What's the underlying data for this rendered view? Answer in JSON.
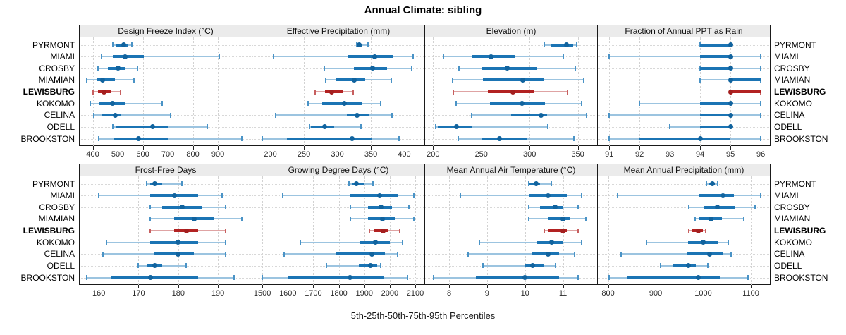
{
  "title": "Annual Climate: sibling",
  "caption": "5th-25th-50th-75th-95th Percentiles",
  "percentile_labels": [
    "5th",
    "25th",
    "50th",
    "75th",
    "95th"
  ],
  "stations": [
    "PYRMONT",
    "MIAMI",
    "CROSBY",
    "MIAMIAN",
    "LEWISBURG",
    "KOKOMO",
    "CELINA",
    "ODELL",
    "BROOKSTON"
  ],
  "highlight_station": "LEWISBURG",
  "colors": {
    "series": "#1b74b4",
    "series_light": "#9cc4e0",
    "series_cap": "#4a93c6",
    "series_dot": "#11639e",
    "highlight": "#b22222",
    "highlight_light": "#dfa3a3",
    "highlight_cap": "#c75f5f",
    "highlight_dot": "#a31f1f",
    "panel_header_bg": "#ebebeb",
    "panel_border": "#1a1a1a",
    "grid": "#d2d2d2",
    "tick_label": "#2b2b2b"
  },
  "chart_data": {
    "type": "scatter",
    "subtype": "percentile-interval-dotplot",
    "orientation": "horizontal",
    "grid": "dotted",
    "panels": [
      {
        "title": "Design Freeze Index (°C)",
        "row": 0,
        "col": 0,
        "xlim": [
          345,
          1035
        ],
        "ticks": [
          400,
          500,
          600,
          700,
          800,
          900
        ],
        "series": [
          {
            "station": "PYRMONT",
            "percentiles": [
              480,
              495,
              525,
              540,
              555
            ]
          },
          {
            "station": "MIAMI",
            "percentiles": [
              435,
              480,
              530,
              605,
              905
            ]
          },
          {
            "station": "CROSBY",
            "percentiles": [
              420,
              460,
              500,
              530,
              578
            ]
          },
          {
            "station": "MIAMIAN",
            "percentiles": [
              375,
              415,
              440,
              490,
              565
            ]
          },
          {
            "station": "LEWISBURG",
            "percentiles": [
              400,
              420,
              445,
              475,
              510
            ]
          },
          {
            "station": "KOKOMO",
            "percentiles": [
              390,
              425,
              480,
              527,
              678
            ]
          },
          {
            "station": "CELINA",
            "percentiles": [
              405,
              436,
              490,
              514,
              710
            ]
          },
          {
            "station": "ODELL",
            "percentiles": [
              480,
              492,
              638,
              702,
              857
            ]
          },
          {
            "station": "BROOKSTON",
            "percentiles": [
              424,
              486,
              584,
              702,
              995
            ]
          }
        ]
      },
      {
        "title": "Effective Precipitation (mm)",
        "row": 0,
        "col": 1,
        "xlim": [
          172,
          430
        ],
        "ticks": [
          200,
          250,
          300,
          350,
          400
        ],
        "series": [
          {
            "station": "PYRMONT",
            "percentiles": [
              329,
              330,
              333,
              337,
              346
            ]
          },
          {
            "station": "MIAMI",
            "percentiles": [
              205,
              316,
              356,
              383,
              413
            ]
          },
          {
            "station": "CROSBY",
            "percentiles": [
              280,
              325,
              353,
              374,
              411
            ]
          },
          {
            "station": "MIAMIAN",
            "percentiles": [
              283,
              297,
              325,
              342,
              381
            ]
          },
          {
            "station": "LEWISBURG",
            "percentiles": [
              267,
              281,
              291,
              309,
              324
            ]
          },
          {
            "station": "KOKOMO",
            "percentiles": [
              256,
              277,
              310,
              337,
              365
            ]
          },
          {
            "station": "CELINA",
            "percentiles": [
              208,
              314,
              329,
              348,
              382
            ]
          },
          {
            "station": "ODELL",
            "percentiles": [
              258,
              260,
              281,
              295,
              335
            ]
          },
          {
            "station": "BROOKSTON",
            "percentiles": [
              188,
              225,
              322,
              351,
              392
            ]
          }
        ]
      },
      {
        "title": "Elevation (m)",
        "row": 0,
        "col": 2,
        "xlim": [
          191,
          370
        ],
        "ticks": [
          200,
          250,
          300,
          350
        ],
        "series": [
          {
            "station": "PYRMONT",
            "percentiles": [
              315,
              322,
              338,
              345,
              349
            ]
          },
          {
            "station": "MIAMI",
            "percentiles": [
              211,
              241,
              260,
              285,
              335
            ]
          },
          {
            "station": "CROSBY",
            "percentiles": [
              227,
              251,
              277,
              308,
              347
            ]
          },
          {
            "station": "MIAMIAN",
            "percentiles": [
              220,
              252,
              293,
              315,
              356
            ]
          },
          {
            "station": "LEWISBURG",
            "percentiles": [
              221,
              257,
              283,
              305,
              339
            ]
          },
          {
            "station": "KOKOMO",
            "percentiles": [
              224,
              259,
              292,
              316,
              354
            ]
          },
          {
            "station": "CELINA",
            "percentiles": [
              240,
              281,
              312,
              318,
              359
            ]
          },
          {
            "station": "ODELL",
            "percentiles": [
              203,
              205,
              224,
              241,
              319
            ]
          },
          {
            "station": "BROOKSTON",
            "percentiles": [
              226,
              250,
              269,
              297,
              346
            ]
          }
        ]
      },
      {
        "title": "Fraction of Annual PPT as Rain",
        "row": 0,
        "col": 3,
        "xlim": [
          90.6,
          96.3
        ],
        "ticks": [
          91,
          92,
          93,
          94,
          95,
          96
        ],
        "series": [
          {
            "station": "PYRMONT",
            "percentiles": [
              94,
              94,
              95,
              95,
              95
            ]
          },
          {
            "station": "MIAMI",
            "percentiles": [
              91,
              94,
              95,
              95,
              96
            ]
          },
          {
            "station": "CROSBY",
            "percentiles": [
              94,
              94,
              95,
              95,
              96
            ]
          },
          {
            "station": "MIAMIAN",
            "percentiles": [
              94,
              95,
              95,
              96,
              96
            ]
          },
          {
            "station": "LEWISBURG",
            "percentiles": [
              95,
              95,
              95,
              96,
              96
            ]
          },
          {
            "station": "KOKOMO",
            "percentiles": [
              92,
              94,
              95,
              95,
              96
            ]
          },
          {
            "station": "CELINA",
            "percentiles": [
              91,
              94,
              95,
              95,
              96
            ]
          },
          {
            "station": "ODELL",
            "percentiles": [
              93,
              94,
              95,
              95,
              95
            ]
          },
          {
            "station": "BROOKSTON",
            "percentiles": [
              91,
              92,
              94,
              95,
              96
            ]
          }
        ]
      },
      {
        "title": "Frost-Free Days",
        "row": 1,
        "col": 0,
        "xlim": [
          155,
          198.5
        ],
        "ticks": [
          160,
          170,
          180,
          190
        ],
        "series": [
          {
            "station": "PYRMONT",
            "percentiles": [
              172,
              173,
              174,
              176,
              181
            ]
          },
          {
            "station": "MIAMI",
            "percentiles": [
              160,
              173,
              179,
              185,
              191
            ]
          },
          {
            "station": "CROSBY",
            "percentiles": [
              173,
              176,
              181,
              186,
              192
            ]
          },
          {
            "station": "MIAMIAN",
            "percentiles": [
              173,
              179,
              184,
              189,
              196
            ]
          },
          {
            "station": "LEWISBURG",
            "percentiles": [
              173,
              179,
              182,
              185,
              192
            ]
          },
          {
            "station": "KOKOMO",
            "percentiles": [
              162,
              173,
              180,
              185,
              192
            ]
          },
          {
            "station": "CELINA",
            "percentiles": [
              161,
              174,
              180,
              184,
              192
            ]
          },
          {
            "station": "ODELL",
            "percentiles": [
              170,
              172,
              174,
              176,
              182
            ]
          },
          {
            "station": "BROOKSTON",
            "percentiles": [
              157,
              163,
              173,
              185,
              194
            ]
          }
        ]
      },
      {
        "title": "Growing Degree Days (°C)",
        "row": 1,
        "col": 1,
        "xlim": [
          1458,
          2136
        ],
        "ticks": [
          1500,
          1600,
          1700,
          1800,
          1900,
          2000,
          2100
        ],
        "series": [
          {
            "station": "PYRMONT",
            "percentiles": [
              1840,
              1850,
              1870,
              1900,
              1935
            ]
          },
          {
            "station": "MIAMI",
            "percentiles": [
              1580,
              1845,
              1960,
              2030,
              2095
            ]
          },
          {
            "station": "CROSBY",
            "percentiles": [
              1845,
              1915,
              1965,
              2010,
              2075
            ]
          },
          {
            "station": "MIAMIAN",
            "percentiles": [
              1845,
              1915,
              1970,
              2020,
              2095
            ]
          },
          {
            "station": "LEWISBURG",
            "percentiles": [
              1920,
              1940,
              1975,
              1995,
              2040
            ]
          },
          {
            "station": "KOKOMO",
            "percentiles": [
              1650,
              1885,
              1945,
              2000,
              2050
            ]
          },
          {
            "station": "CELINA",
            "percentiles": [
              1585,
              1790,
              1930,
              1980,
              2030
            ]
          },
          {
            "station": "ODELL",
            "percentiles": [
              1750,
              1880,
              1925,
              1950,
              1965
            ]
          },
          {
            "station": "BROOKSTON",
            "percentiles": [
              1500,
              1600,
              1845,
              1975,
              2070
            ]
          }
        ]
      },
      {
        "title": "Mean Annual Air Temperature (°C)",
        "row": 1,
        "col": 2,
        "xlim": [
          7.35,
          11.9
        ],
        "ticks": [
          8,
          9,
          10,
          11
        ],
        "series": [
          {
            "station": "PYRMONT",
            "percentiles": [
              10.1,
              10.1,
              10.3,
              10.4,
              10.7
            ]
          },
          {
            "station": "MIAMI",
            "percentiles": [
              8.3,
              10.1,
              10.6,
              11.1,
              11.5
            ]
          },
          {
            "station": "CROSBY",
            "percentiles": [
              10.1,
              10.4,
              10.8,
              11.0,
              11.4
            ]
          },
          {
            "station": "MIAMIAN",
            "percentiles": [
              10.1,
              10.6,
              11.0,
              11.2,
              11.6
            ]
          },
          {
            "station": "LEWISBURG",
            "percentiles": [
              10.5,
              10.6,
              11.0,
              11.1,
              11.4
            ]
          },
          {
            "station": "KOKOMO",
            "percentiles": [
              8.8,
              10.3,
              10.7,
              11.0,
              11.5
            ]
          },
          {
            "station": "CELINA",
            "percentiles": [
              8.5,
              10.2,
              10.6,
              10.9,
              11.3
            ]
          },
          {
            "station": "ODELL",
            "percentiles": [
              8.9,
              10.0,
              10.2,
              10.5,
              10.8
            ]
          },
          {
            "station": "BROOKSTON",
            "percentiles": [
              7.6,
              8.7,
              10.0,
              10.9,
              11.4
            ]
          }
        ]
      },
      {
        "title": "Mean Annual Precipitation (mm)",
        "row": 1,
        "col": 3,
        "xlim": [
          777,
          1140
        ],
        "ticks": [
          800,
          900,
          1000,
          1100
        ],
        "series": [
          {
            "station": "PYRMONT",
            "percentiles": [
              1007,
              1012,
              1019,
              1024,
              1030
            ]
          },
          {
            "station": "MIAMI",
            "percentiles": [
              820,
              990,
              1042,
              1064,
              1121
            ]
          },
          {
            "station": "CROSBY",
            "percentiles": [
              970,
              1000,
              1030,
              1068,
              1109
            ]
          },
          {
            "station": "MIAMIAN",
            "percentiles": [
              983,
              990,
              1016,
              1040,
              1085
            ]
          },
          {
            "station": "LEWISBURG",
            "percentiles": [
              970,
              975,
              989,
              1000,
              1005
            ]
          },
          {
            "station": "KOKOMO",
            "percentiles": [
              881,
              968,
              1000,
              1030,
              1052
            ]
          },
          {
            "station": "CELINA",
            "percentiles": [
              827,
              965,
              1014,
              1042,
              1059
            ]
          },
          {
            "station": "ODELL",
            "percentiles": [
              911,
              936,
              969,
              985,
              1009
            ]
          },
          {
            "station": "BROOKSTON",
            "percentiles": [
              802,
              840,
              989,
              1035,
              1094
            ]
          }
        ]
      }
    ]
  }
}
